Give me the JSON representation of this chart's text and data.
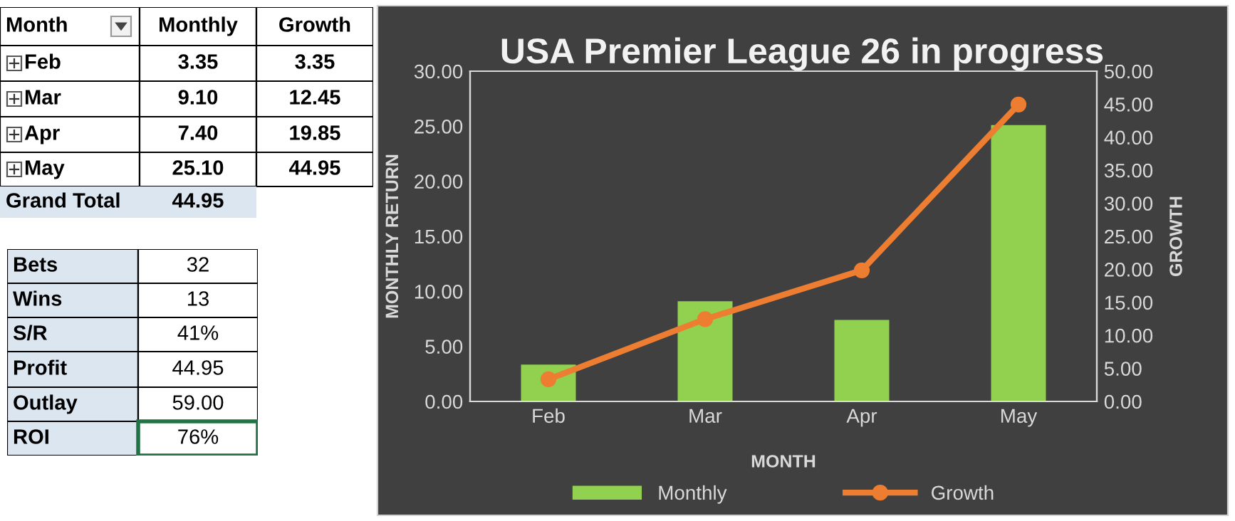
{
  "chart_data": [
    {
      "type": "other",
      "annotations": [
        "Month",
        "Monthly",
        "Growth",
        "Feb",
        "3.35",
        "3.35",
        "Mar",
        "9.10",
        "12.45",
        "Apr",
        "7.40",
        "19.85",
        "May",
        "25.10",
        "44.95",
        "Grand Total",
        "44.95"
      ]
    },
    {
      "type": "other",
      "annotations": [
        "Bets",
        "32",
        "Wins",
        "13",
        "S/R",
        "41%",
        "Profit",
        "44.95",
        "Outlay",
        "59.00",
        "ROI",
        "76%"
      ]
    },
    {
      "type": "bar",
      "title": "USA Premier League 26 in progress",
      "xlabel": "MONTH",
      "ylabel": "MONTHLY RETURN",
      "y2label": "GROWTH",
      "categories": [
        "Feb",
        "Mar",
        "Apr",
        "May"
      ],
      "series": [
        {
          "name": "Monthly",
          "color": "#92d050",
          "values": [
            3.35,
            9.1,
            7.4,
            25.1
          ]
        },
        {
          "name": "Growth",
          "type": "line",
          "axis": "y2",
          "color": "#ed7d31",
          "values": [
            3.35,
            12.45,
            19.85,
            44.95
          ]
        }
      ],
      "marker": "circle",
      "legend": "bottom",
      "grid": false,
      "ylim": [
        0,
        30
      ],
      "yticks": [
        {
          "value": 0,
          "label": "0.00"
        },
        {
          "value": 5,
          "label": "5.00"
        },
        {
          "value": 10,
          "label": "10.00"
        },
        {
          "value": 15,
          "label": "15.00"
        },
        {
          "value": 20,
          "label": "20.00"
        },
        {
          "value": 25,
          "label": "25.00"
        },
        {
          "value": 30,
          "label": "30.00"
        }
      ],
      "y2lim": [
        0,
        50
      ],
      "y2ticks": [
        {
          "value": 0,
          "label": "0.00"
        },
        {
          "value": 5,
          "label": "5.00"
        },
        {
          "value": 10,
          "label": "10.00"
        },
        {
          "value": 15,
          "label": "15.00"
        },
        {
          "value": 20,
          "label": "20.00"
        },
        {
          "value": 25,
          "label": "25.00"
        },
        {
          "value": 30,
          "label": "30.00"
        },
        {
          "value": 35,
          "label": "35.00"
        },
        {
          "value": 40,
          "label": "40.00"
        },
        {
          "value": 45,
          "label": "45.00"
        },
        {
          "value": 50,
          "label": "50.00"
        }
      ]
    }
  ]
}
